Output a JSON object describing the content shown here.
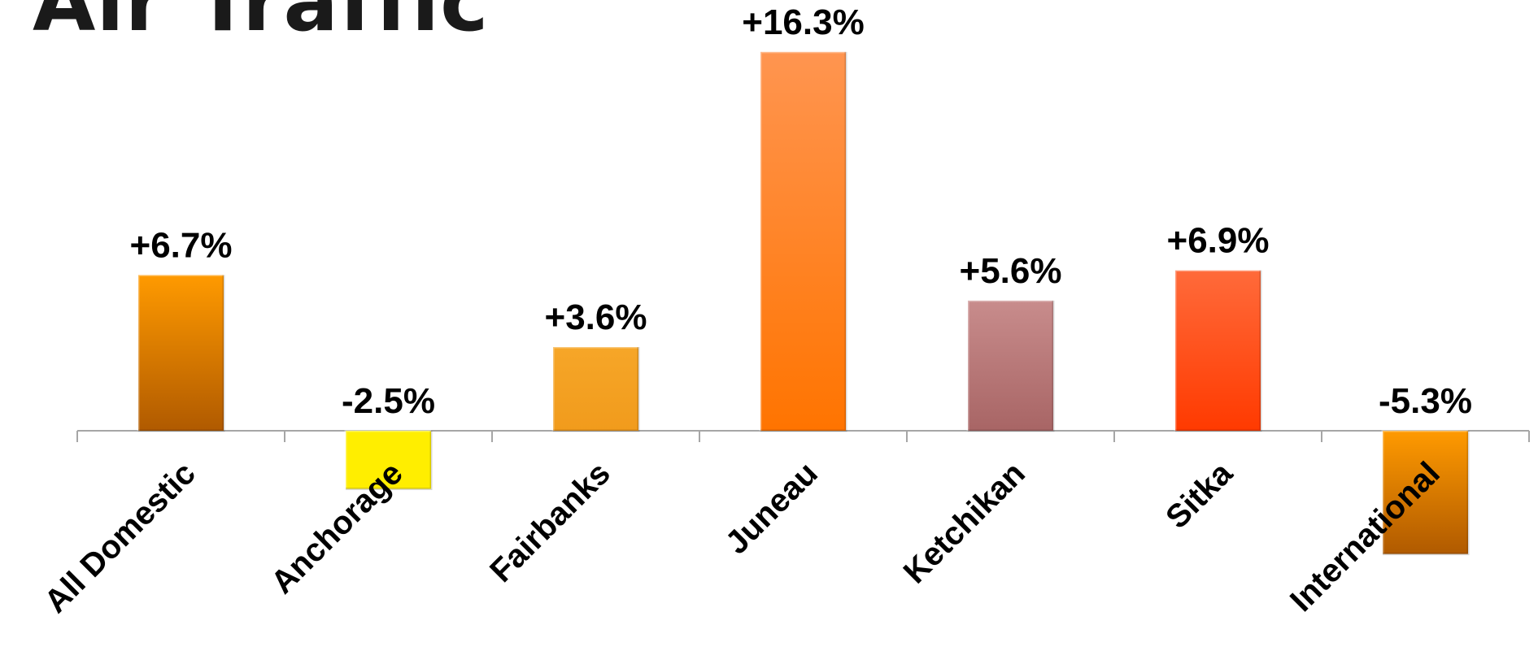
{
  "page": {
    "title": "Air Traffic"
  },
  "chart_data": {
    "type": "bar",
    "title": "",
    "xlabel": "",
    "ylabel": "",
    "categories": [
      "All Domestic",
      "Anchorage",
      "Fairbanks",
      "Juneau",
      "Ketchikan",
      "Sitka",
      "International"
    ],
    "values": [
      6.7,
      -2.5,
      3.6,
      16.3,
      5.6,
      6.9,
      -5.3
    ],
    "data_labels": [
      "+6.7%",
      "-2.5%",
      "+3.6%",
      "+16.3%",
      "+5.6%",
      "+6.9%",
      "-5.3%"
    ],
    "unit": "%",
    "ylim": [
      -6,
      17
    ],
    "grid": false,
    "legend": "none",
    "bar_colors": [
      [
        "#ff9a00",
        "#b05a00"
      ],
      [
        "#ffee00",
        "#ffee00"
      ],
      [
        "#f6a628",
        "#f19b1c"
      ],
      [
        "#ff9550",
        "#ff7400"
      ],
      [
        "#c88c8c",
        "#a86565"
      ],
      [
        "#ff6a3a",
        "#ff3a00"
      ],
      [
        "#ff9a00",
        "#b05a00"
      ]
    ]
  }
}
